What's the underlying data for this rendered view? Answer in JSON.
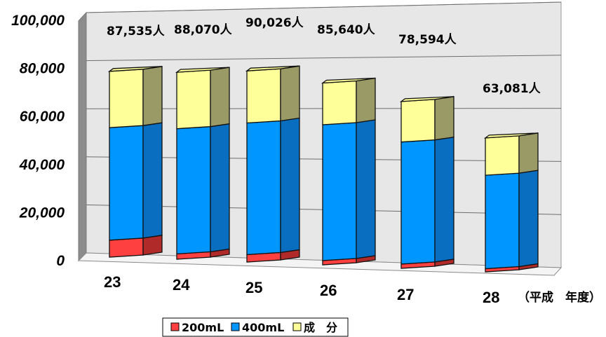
{
  "chart_data": {
    "type": "bar",
    "stacked": true,
    "three_d": true,
    "categories": [
      "23",
      "24",
      "25",
      "26",
      "27",
      "28"
    ],
    "x_unit_label": "（平成　年度）",
    "ylim": [
      0,
      100000
    ],
    "yticks": [
      "0",
      "20,000",
      "40,000",
      "60,000",
      "80,000",
      "100,000"
    ],
    "series": [
      {
        "name": "200mL",
        "color": "#ff4040",
        "values": [
          8000,
          2500,
          3500,
          2000,
          2000,
          1500
        ]
      },
      {
        "name": "400mL",
        "color": "#0096ff",
        "values": [
          53000,
          59000,
          62000,
          64000,
          57500,
          44000
        ]
      },
      {
        "name": "成　分",
        "color": "#ffff99",
        "values": [
          26535,
          26570,
          24526,
          19640,
          19094,
          17581
        ]
      }
    ],
    "totals": [
      "87,535人",
      "88,070人",
      "90,026人",
      "85,640人",
      "78,594人",
      "63,081人"
    ],
    "grid": true,
    "legend": "bottom"
  }
}
